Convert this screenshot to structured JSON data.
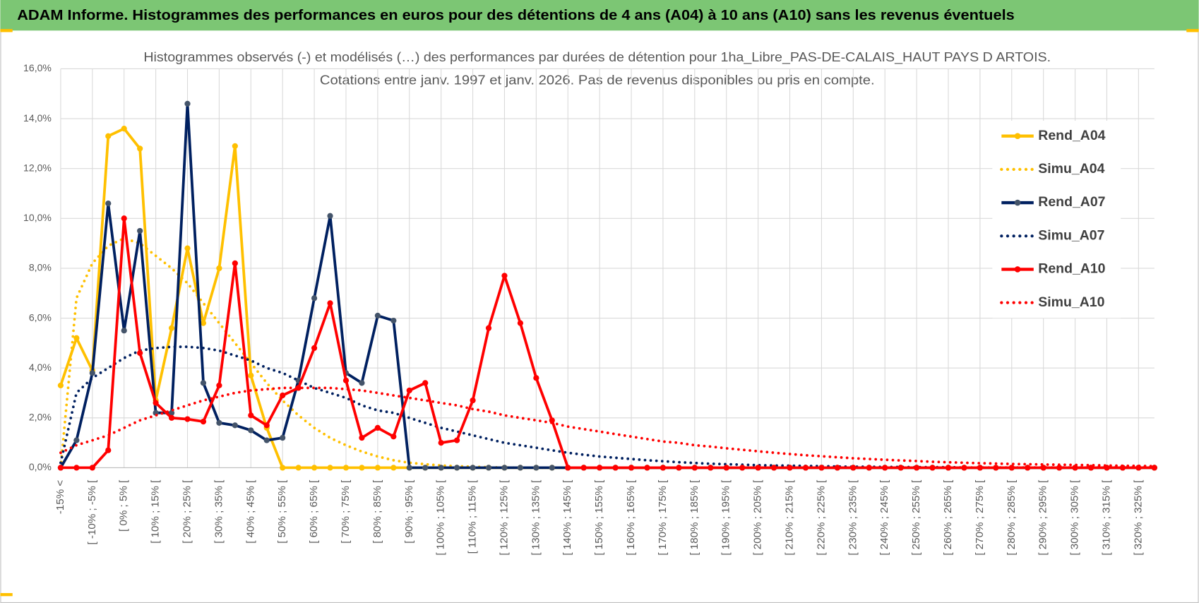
{
  "header": {
    "title": "ADAM Informe. Histogrammes des performances en euros pour des détentions de 4 ans (A04) à 10 ans (A10) sans les revenus éventuels"
  },
  "chart_data": {
    "type": "line",
    "title": "Histogrammes observés (-) et modélisés (…) des performances par durées de détention pour 1ha_Libre_PAS-DE-CALAIS_HAUT PAYS D ARTOIS.",
    "subtitle": "Cotations entre janv. 1997 et janv. 2026. Pas de revenus disponibles ou pris en compte.",
    "categories": [
      "-15% <",
      null,
      "[ -10% ; -5% [",
      null,
      "[ 0% ; 5% [",
      null,
      "[ 10% ; 15% [",
      null,
      "[ 20% ; 25% [",
      null,
      "[ 30% ; 35% [",
      null,
      "[ 40% ; 45% [",
      null,
      "[ 50% ; 55% [",
      null,
      "[ 60% ; 65% [",
      null,
      "[ 70% ; 75% [",
      null,
      "[ 80% ; 85% [",
      null,
      "[ 90% ; 95% [",
      null,
      "[ 100% ; 105% [",
      null,
      "[ 110% ; 115% [",
      null,
      "[ 120% ; 125% [",
      null,
      "[ 130% ; 135% [",
      null,
      "[ 140% ; 145% [",
      null,
      "[ 150% ; 155% [",
      null,
      "[ 160% ; 165% [",
      null,
      "[ 170% ; 175% [",
      null,
      "[ 180% ; 185% [",
      null,
      "[ 190% ; 195% [",
      null,
      "[ 200% ; 205% [",
      null,
      "[ 210% ; 215% [",
      null,
      "[ 220% ; 225% [",
      null,
      "[ 230% ; 235% [",
      null,
      "[ 240% ; 245% [",
      null,
      "[ 250% ; 255% [",
      null,
      "[ 260% ; 265% [",
      null,
      "[ 270% ; 275% [",
      null,
      "[ 280% ; 285% [",
      null,
      "[ 290% ; 295% [",
      null,
      "[ 300% ; 305% [",
      null,
      "[ 310% ; 315% [",
      null,
      "[ 320% ; 325% [",
      null
    ],
    "ylim": [
      0,
      16
    ],
    "yticks": [
      {
        "value": 0,
        "label": "0,0%"
      },
      {
        "value": 2,
        "label": "2,0%"
      },
      {
        "value": 4,
        "label": "4,0%"
      },
      {
        "value": 6,
        "label": "6,0%"
      },
      {
        "value": 8,
        "label": "8,0%"
      },
      {
        "value": 10,
        "label": "10,0%"
      },
      {
        "value": 12,
        "label": "12,0%"
      },
      {
        "value": 14,
        "label": "14,0%"
      },
      {
        "value": 16,
        "label": "16,0%"
      }
    ],
    "grid": true,
    "legend": "right",
    "series": [
      {
        "name": "Rend_A04",
        "color": "#ffc000",
        "style": "solid",
        "markers": true,
        "values": [
          3.3,
          5.2,
          3.9,
          13.3,
          13.6,
          12.8,
          2.7,
          5.6,
          8.8,
          5.8,
          8.0,
          12.9,
          3.7,
          1.6,
          0,
          0,
          0,
          0,
          0,
          0,
          0,
          0,
          0,
          0,
          0,
          0,
          0,
          0,
          0,
          0,
          0,
          0,
          0,
          0,
          0,
          0,
          0,
          0,
          0,
          0,
          0,
          0,
          0,
          0,
          0,
          0,
          0,
          0,
          0,
          0,
          0,
          0,
          0,
          0,
          0,
          0,
          0,
          0,
          0,
          0,
          0,
          0,
          0,
          0,
          0,
          0,
          0,
          0,
          0,
          0
        ]
      },
      {
        "name": "Simu_A04",
        "color": "#ffc000",
        "style": "dotted",
        "markers": false,
        "values": [
          0,
          6.8,
          8.2,
          8.9,
          9.2,
          9.0,
          8.5,
          8.0,
          7.4,
          6.6,
          5.8,
          5.0,
          4.2,
          3.4,
          2.7,
          2.1,
          1.6,
          1.2,
          0.9,
          0.65,
          0.45,
          0.3,
          0.2,
          0.14,
          0.09,
          0.06,
          0.04,
          0.02,
          0.01,
          0,
          0,
          0,
          0,
          0,
          0,
          0,
          0,
          0,
          0,
          0,
          0,
          0,
          0,
          0,
          0,
          0,
          0,
          0,
          0,
          0,
          0,
          0,
          0,
          0,
          0,
          0,
          0,
          0,
          0,
          0,
          0,
          0,
          0,
          0,
          0,
          0,
          0,
          0,
          0,
          0
        ]
      },
      {
        "name": "Rend_A07",
        "color": "#002060",
        "marker_color": "#44546a",
        "style": "solid",
        "markers": true,
        "values": [
          0,
          1.1,
          3.8,
          10.6,
          5.5,
          9.5,
          2.2,
          2.2,
          14.6,
          3.4,
          1.8,
          1.7,
          1.5,
          1.1,
          1.2,
          3.5,
          6.8,
          10.1,
          3.8,
          3.4,
          6.1,
          5.9,
          0,
          0,
          0,
          0,
          0,
          0,
          0,
          0,
          0,
          0,
          0,
          0,
          0,
          0,
          0,
          0,
          0,
          0,
          0,
          0,
          0,
          0,
          0,
          0,
          0,
          0,
          0,
          0,
          0,
          0,
          0,
          0,
          0,
          0,
          0,
          0,
          0,
          0,
          0,
          0,
          0,
          0,
          0,
          0,
          0,
          0,
          0,
          0
        ]
      },
      {
        "name": "Simu_A07",
        "color": "#002060",
        "style": "dotted",
        "markers": false,
        "values": [
          0.2,
          3.0,
          3.6,
          4.0,
          4.4,
          4.7,
          4.8,
          4.85,
          4.85,
          4.8,
          4.7,
          4.5,
          4.3,
          4.0,
          3.8,
          3.5,
          3.2,
          3.0,
          2.8,
          2.5,
          2.3,
          2.2,
          2.0,
          1.8,
          1.6,
          1.45,
          1.3,
          1.15,
          1.0,
          0.9,
          0.8,
          0.7,
          0.6,
          0.52,
          0.45,
          0.4,
          0.35,
          0.3,
          0.26,
          0.22,
          0.19,
          0.16,
          0.14,
          0.12,
          0.1,
          0.09,
          0.08,
          0.07,
          0.06,
          0.05,
          0.04,
          0.04,
          0.03,
          0.03,
          0.02,
          0.02,
          0.02,
          0.01,
          0.01,
          0.01,
          0.01,
          0.01,
          0.01,
          0.01,
          0.01,
          0.01,
          0.01,
          0.01,
          0.01,
          0.01
        ]
      },
      {
        "name": "Rend_A10",
        "color": "#ff0000",
        "style": "solid",
        "markers": true,
        "values": [
          0,
          0,
          0,
          0.7,
          10.0,
          4.6,
          2.6,
          2.0,
          1.95,
          1.85,
          3.3,
          8.2,
          2.1,
          1.7,
          2.9,
          3.2,
          4.8,
          6.6,
          3.5,
          1.2,
          1.6,
          1.25,
          3.1,
          3.4,
          1.0,
          1.1,
          2.7,
          5.6,
          7.7,
          5.8,
          3.6,
          1.9,
          0,
          0,
          0,
          0,
          0,
          0,
          0,
          0,
          0,
          0,
          0,
          0,
          0,
          0,
          0,
          0,
          0,
          0,
          0,
          0,
          0,
          0,
          0,
          0,
          0,
          0,
          0,
          0,
          0,
          0,
          0,
          0,
          0,
          0,
          0,
          0,
          0,
          0
        ]
      },
      {
        "name": "Simu_A10",
        "color": "#ff0000",
        "style": "dotted",
        "markers": false,
        "values": [
          0.6,
          0.9,
          1.1,
          1.3,
          1.6,
          1.9,
          2.1,
          2.3,
          2.5,
          2.7,
          2.85,
          3.0,
          3.1,
          3.15,
          3.2,
          3.2,
          3.2,
          3.2,
          3.15,
          3.1,
          3.0,
          2.9,
          2.8,
          2.7,
          2.6,
          2.5,
          2.35,
          2.25,
          2.1,
          2.0,
          1.9,
          1.8,
          1.65,
          1.55,
          1.45,
          1.35,
          1.25,
          1.15,
          1.05,
          1.0,
          0.9,
          0.85,
          0.78,
          0.72,
          0.66,
          0.6,
          0.55,
          0.5,
          0.46,
          0.42,
          0.38,
          0.35,
          0.32,
          0.29,
          0.27,
          0.24,
          0.22,
          0.2,
          0.18,
          0.17,
          0.15,
          0.14,
          0.13,
          0.12,
          0.11,
          0.1,
          0.09,
          0.08,
          0.07,
          0.06
        ]
      }
    ]
  }
}
